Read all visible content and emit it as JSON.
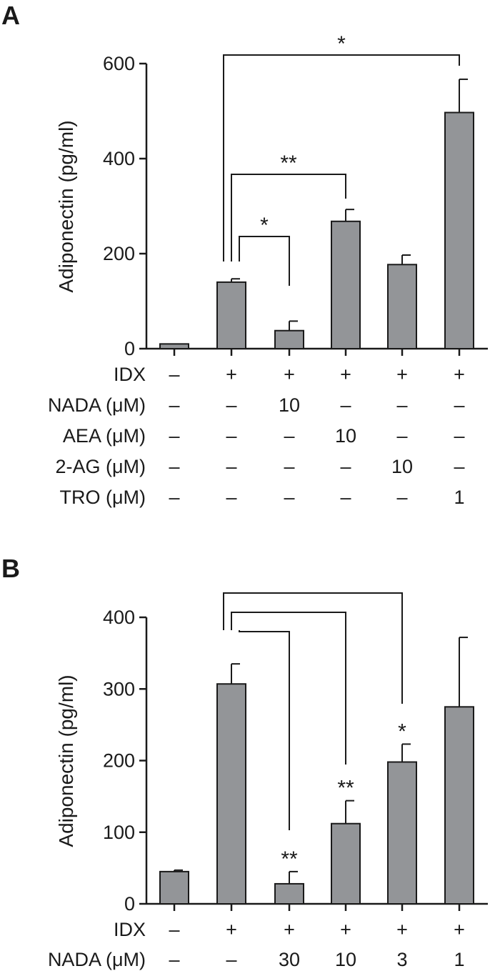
{
  "chart_data": [
    {
      "panel": "A",
      "type": "bar",
      "ylabel": "Adiponectin (pg/ml)",
      "ylim": [
        0,
        600
      ],
      "yticks": [
        "0",
        "200",
        "400",
        "600"
      ],
      "values": [
        10,
        140,
        38,
        268,
        177,
        497
      ],
      "errors": [
        0,
        7,
        20,
        25,
        20,
        70
      ],
      "conditions": [
        {
          "label": "IDX",
          "cells": [
            "–",
            "+",
            "+",
            "+",
            "+",
            "+"
          ]
        },
        {
          "label": "NADA (μM)",
          "cells": [
            "–",
            "–",
            "10",
            "–",
            "–",
            "–"
          ]
        },
        {
          "label": "AEA (μM)",
          "cells": [
            "–",
            "–",
            "–",
            "10",
            "–",
            "–"
          ]
        },
        {
          "label": "2-AG (μM)",
          "cells": [
            "–",
            "–",
            "–",
            "–",
            "10",
            "–"
          ]
        },
        {
          "label": "TRO (μM)",
          "cells": [
            "–",
            "–",
            "–",
            "–",
            "–",
            "1"
          ]
        }
      ],
      "comparisons": [
        {
          "from": 1,
          "to": 5,
          "label": "*"
        },
        {
          "from": 1,
          "to": 3,
          "label": "**"
        },
        {
          "from": 1,
          "to": 2,
          "label": "*"
        }
      ]
    },
    {
      "panel": "B",
      "type": "bar",
      "ylabel": "Adiponectin (pg/ml)",
      "ylim": [
        0,
        400
      ],
      "yticks": [
        "0",
        "100",
        "200",
        "300",
        "400"
      ],
      "values": [
        45,
        307,
        28,
        112,
        198,
        275
      ],
      "errors": [
        2,
        28,
        17,
        32,
        25,
        97
      ],
      "conditions": [
        {
          "label": "IDX",
          "cells": [
            "–",
            "+",
            "+",
            "+",
            "+",
            "+"
          ]
        },
        {
          "label": "NADA (μM)",
          "cells": [
            "–",
            "–",
            "30",
            "10",
            "3",
            "1"
          ]
        }
      ],
      "comparisons": [
        {
          "from": 1,
          "to": 4
        },
        {
          "from": 1,
          "to": 3
        },
        {
          "from": 1,
          "to": 2
        }
      ],
      "bar_labels": [
        "",
        "",
        "**",
        "**",
        "*",
        ""
      ]
    }
  ]
}
